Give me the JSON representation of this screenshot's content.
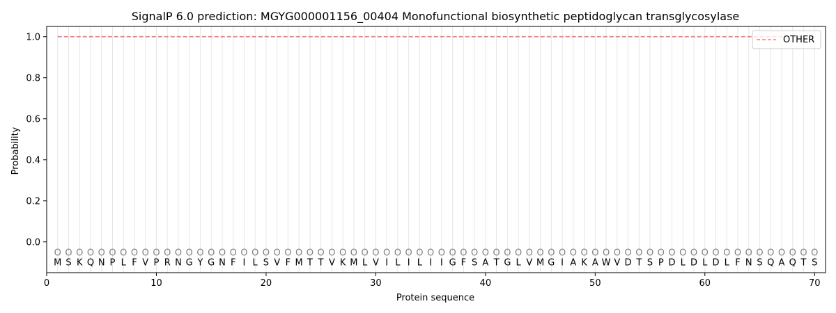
{
  "chart_data": {
    "type": "line",
    "title": "SignalP 6.0 prediction: MGYG000001156_00404 Monofunctional biosynthetic peptidoglycan transglycosylase",
    "xlabel": "Protein sequence",
    "ylabel": "Probability",
    "xlim": [
      0,
      71
    ],
    "ylim": [
      -0.15,
      1.05
    ],
    "x_ticks": [
      0,
      10,
      20,
      30,
      40,
      50,
      60,
      70
    ],
    "y_ticks": [
      0.0,
      0.2,
      0.4,
      0.6,
      0.8,
      1.0
    ],
    "x_tick_labels": [
      "0",
      "10",
      "20",
      "30",
      "40",
      "50",
      "60",
      "70"
    ],
    "y_tick_labels": [
      "0.0",
      "0.2",
      "0.4",
      "0.6",
      "0.8",
      "1.0"
    ],
    "sequence": [
      "M",
      "S",
      "K",
      "Q",
      "N",
      "P",
      "L",
      "F",
      "V",
      "P",
      "R",
      "N",
      "G",
      "Y",
      "G",
      "N",
      "F",
      "I",
      "L",
      "S",
      "V",
      "F",
      "M",
      "T",
      "T",
      "V",
      "K",
      "M",
      "L",
      "V",
      "I",
      "L",
      "I",
      "L",
      "I",
      "I",
      "G",
      "F",
      "S",
      "A",
      "T",
      "G",
      "L",
      "V",
      "M",
      "G",
      "I",
      "A",
      "K",
      "A",
      "W",
      "V",
      "D",
      "T",
      "S",
      "P",
      "D",
      "L",
      "D",
      "L",
      "D",
      "L",
      "F",
      "N",
      "S",
      "Q",
      "A",
      "Q",
      "T",
      "S"
    ],
    "predicted_labels": "OOOOOOOOOOOOOOOOOOOOOOOOOOOOOOOOOOOOOOOOOOOOOOOOOOOOOOOOOOOOOOOOOOOOOO",
    "series": [
      {
        "name": "OTHER",
        "color": "#f08080",
        "style": "dashed",
        "x_start": 1,
        "x_end": 70,
        "values": [
          1.0
        ]
      }
    ],
    "grid": "vertical lines at each residue",
    "legend_position": "top-right"
  }
}
